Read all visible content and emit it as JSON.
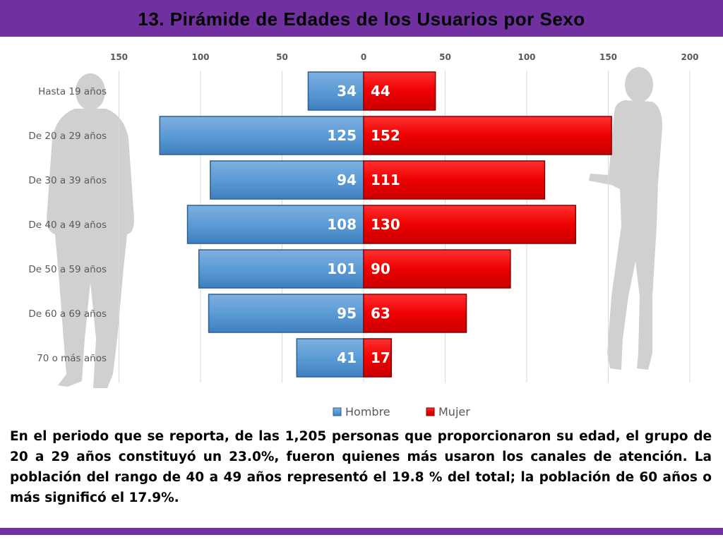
{
  "slide": {
    "title": "13. Pirámide de Edades de los Usuarios por Sexo",
    "description": "En el periodo que se reporta, de las 1,205 personas que proporcionaron su edad, el grupo de 20 a 29 años constituyó un 23.0%, fueron quienes más usaron los canales de atención. La población del rango de 40 a 49 años representó el 19.8 % del total; la población de 60 años o más significó el 17.9%."
  },
  "colors": {
    "title_bar": "#7030a0",
    "hombre": "#5b9bd5",
    "mujer": "#ff0000",
    "silhouette": "#c8c8c8"
  },
  "chart_data": {
    "type": "bar",
    "orientation": "horizontal-pyramid",
    "categories": [
      "Hasta 19 años",
      "De 20 a 29 años",
      "De 30 a 39 años",
      "De 40 a 49 años",
      "De 50 a 59 años",
      "De 60 a 69 años",
      "70 o más años"
    ],
    "series": [
      {
        "name": "Hombre",
        "values": [
          34,
          125,
          94,
          108,
          101,
          95,
          41
        ],
        "color": "#5b9bd5",
        "direction": "left"
      },
      {
        "name": "Mujer",
        "values": [
          44,
          152,
          111,
          130,
          90,
          63,
          17
        ],
        "color": "#ff0000",
        "direction": "right"
      }
    ],
    "xlim": [
      -150,
      200
    ],
    "x_ticks": [
      -150,
      -100,
      -50,
      0,
      50,
      100,
      150,
      200
    ],
    "x_tick_labels": [
      "150",
      "100",
      "50",
      "0",
      "50",
      "100",
      "150",
      "200"
    ],
    "grid": true,
    "legend": "bottom"
  }
}
